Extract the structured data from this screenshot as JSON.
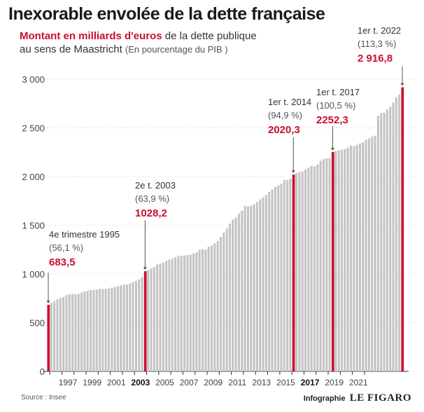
{
  "title": "Inexorable envolée de la dette française",
  "subtitle": {
    "highlight": "Montant en milliards d'euros",
    "line1_rest": " de la dette publique",
    "line2": "au sens de Maastricht ",
    "line2_small": "(En pourcentage du PIB )"
  },
  "footer": {
    "source": "Source : Insee",
    "prefix": "Infographie",
    "brand": "LE FIGARO"
  },
  "colors": {
    "bar": "#c4c4c4",
    "highlight": "#c8102e",
    "text": "#333333"
  },
  "chart_data": {
    "type": "bar",
    "x_unit": "quarter",
    "y_unit": "milliards d'euros",
    "ylim": [
      0,
      3000
    ],
    "yticks": [
      0,
      500,
      1000,
      1500,
      2000,
      2500,
      3000
    ],
    "ytick_labels": [
      "0",
      "500",
      "1 000",
      "1 500",
      "2 000",
      "2 500",
      "3 000"
    ],
    "xtick_labels": [
      "1997",
      "1999",
      "2001",
      "2003",
      "2005",
      "2007",
      "2009",
      "2011",
      "2013",
      "2015",
      "2017",
      "2019",
      "2021"
    ],
    "bold_xticks": [
      "2003",
      "2017"
    ],
    "grid": true,
    "start_quarter": "1995 T4",
    "values": [
      683.5,
      702,
      720,
      738,
      752,
      762,
      782,
      792,
      794,
      790,
      797,
      810,
      822,
      826,
      834,
      836,
      840,
      846,
      846,
      848,
      852,
      860,
      866,
      874,
      884,
      892,
      892,
      902,
      918,
      930,
      945,
      966,
      1028.2,
      1041,
      1058,
      1072,
      1098,
      1106,
      1116,
      1134,
      1146,
      1156,
      1172,
      1184,
      1186,
      1190,
      1196,
      1198,
      1212,
      1222,
      1248,
      1254,
      1250,
      1280,
      1292,
      1314,
      1338,
      1380,
      1424,
      1468,
      1518,
      1560,
      1580,
      1620,
      1650,
      1700,
      1694,
      1700,
      1716,
      1740,
      1766,
      1786,
      1810,
      1842,
      1868,
      1892,
      1910,
      1926,
      1966,
      1964,
      1978,
      2020.3,
      2036,
      2046,
      2052,
      2074,
      2092,
      2110,
      2104,
      2124,
      2162,
      2180,
      2186,
      2192,
      2252.3,
      2262,
      2270,
      2276,
      2282,
      2296,
      2318,
      2312,
      2326,
      2340,
      2352,
      2378,
      2392,
      2410,
      2420,
      2624,
      2650,
      2656,
      2688,
      2716,
      2760,
      2812,
      2842,
      2916.8
    ],
    "highlights": [
      {
        "period": "4e trimestre 1995",
        "pct": "(56,1 %)",
        "value": "683,5"
      },
      {
        "period": "2e t. 2003",
        "pct": "(63,9 %)",
        "value": "1028,2"
      },
      {
        "period": "1er t. 2014",
        "pct": "(94,9 %)",
        "value": "2020,3"
      },
      {
        "period": "1er t. 2017",
        "pct": "(100,5 %)",
        "value": "2252,3"
      },
      {
        "period": "1er t. 2022",
        "pct": "(113,3 %)",
        "value": "2 916,8"
      }
    ]
  }
}
